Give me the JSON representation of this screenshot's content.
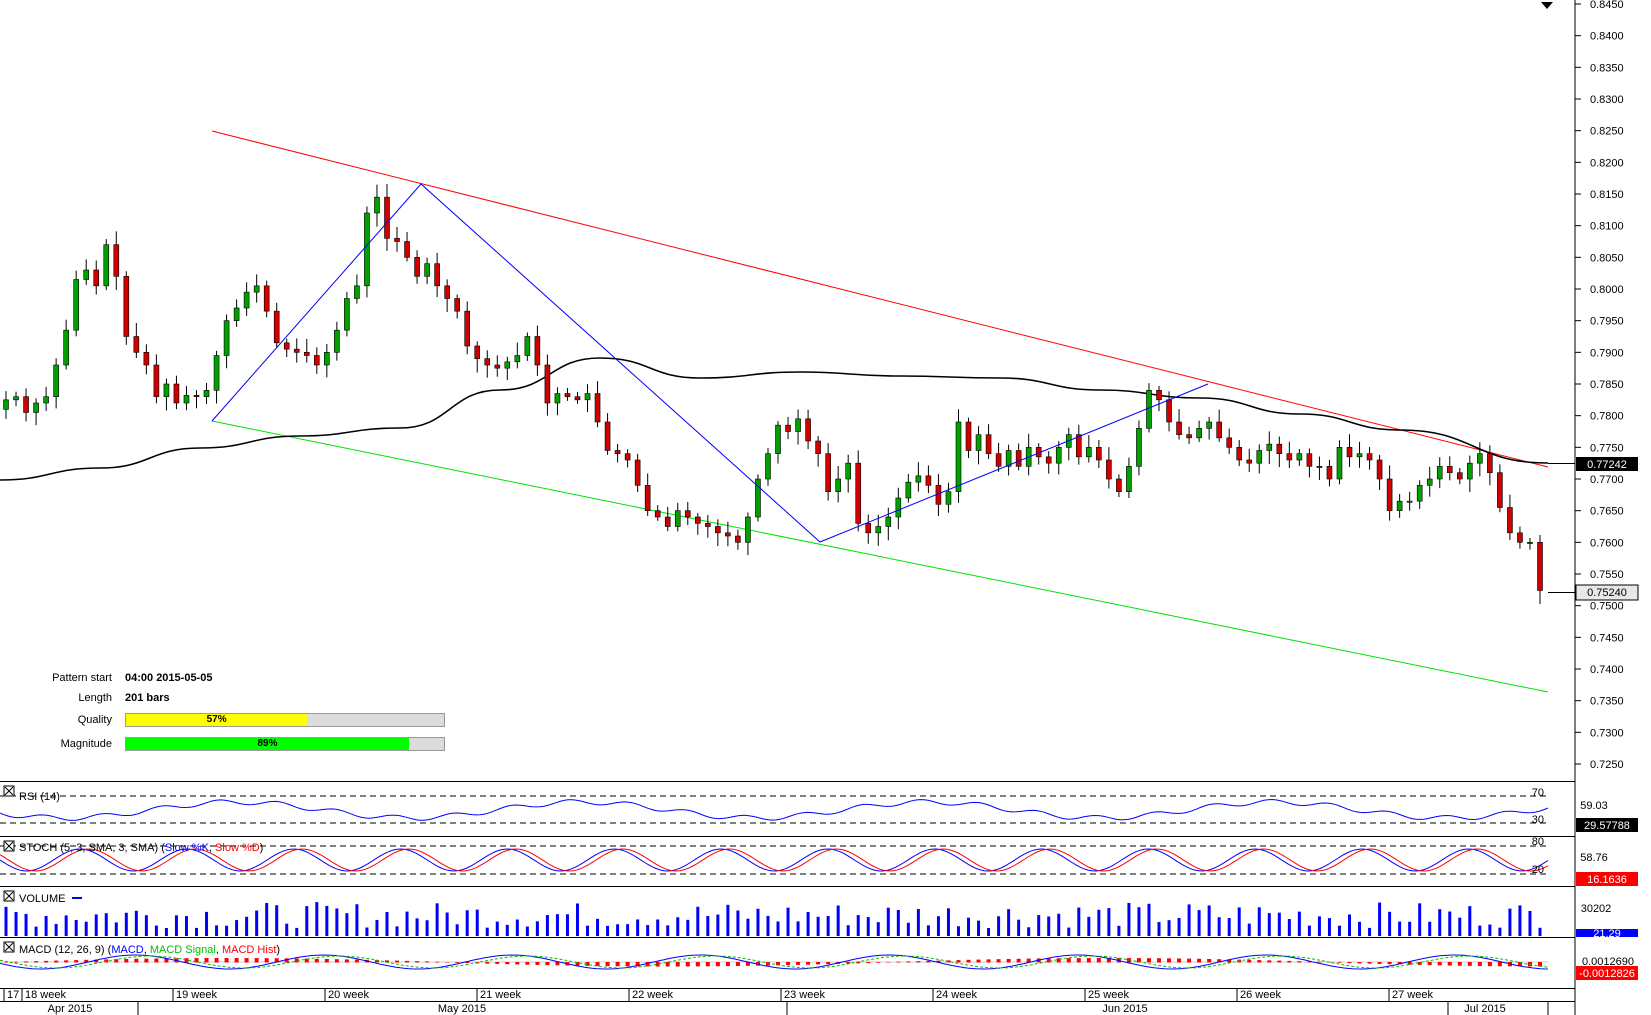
{
  "panels": {
    "rsi": {
      "title": "RSI (14)",
      "levels": [
        "70",
        "30"
      ],
      "mid": "59.03",
      "value": "29.57788"
    },
    "stoch": {
      "title_prefix": "STOCH (5, 3, SMA, 3, SMA) (",
      "k": "Slow %K",
      "sep": ", ",
      "d": "Slow %D",
      "suffix": ")",
      "levels": [
        "80",
        "20"
      ],
      "mid": "58.76",
      "value": "16.1636"
    },
    "volume": {
      "title": "VOLUME",
      "mid": "30202",
      "value": "21.29"
    },
    "macd": {
      "title_prefix": "MACD (12, 26, 9) (",
      "macd": "MACD",
      "signal": "MACD Signal",
      "hist": "MACD Hist",
      "sep": ", ",
      "suffix": ")",
      "top": "0.0012690",
      "value": "-0.0012826"
    }
  },
  "pattern": {
    "start_label": "Pattern start",
    "start_value": "04:00 2015-05-05",
    "length_label": "Length",
    "length_value": "201 bars",
    "quality_label": "Quality",
    "quality_value": "57%",
    "quality": 0.57,
    "magnitude_label": "Magnitude",
    "magnitude_value": "89%",
    "magnitude": 0.89
  },
  "colors": {
    "up": "#00a000",
    "down": "#d00000",
    "resistance": "#ff0000",
    "support": "#00e000",
    "zigzag": "#0000ff",
    "ma": "#000000",
    "quality": "#ffff00",
    "magnitude": "#00ff00"
  },
  "chart_data": {
    "type": "candlestick",
    "instrument_unknown": true,
    "ylim": [
      0.72,
      0.845
    ],
    "yticks": [
      "0.8450",
      "0.8400",
      "0.8350",
      "0.8300",
      "0.8250",
      "0.8200",
      "0.8150",
      "0.8100",
      "0.8050",
      "0.8000",
      "0.7950",
      "0.7900",
      "0.7850",
      "0.7800",
      "0.7750",
      "0.7700",
      "0.7650",
      "0.7600",
      "0.7550",
      "0.7500",
      "0.7450",
      "0.7400",
      "0.7350",
      "0.7300",
      "0.7250"
    ],
    "last_price": "0.75240",
    "ma_last": "0.77242",
    "week_labels": [
      "17",
      "18 week",
      "19 week",
      "20 week",
      "21 week",
      "22 week",
      "23 week",
      "24 week",
      "25 week",
      "26 week",
      "27 week"
    ],
    "month_labels": [
      "Apr 2015",
      "May 2015",
      "Jun 2015",
      "Jul 2015"
    ],
    "closes": [
      0.7825,
      0.783,
      0.7805,
      0.782,
      0.783,
      0.788,
      0.7935,
      0.8015,
      0.803,
      0.8005,
      0.807,
      0.802,
      0.7925,
      0.79,
      0.788,
      0.783,
      0.785,
      0.782,
      0.7832,
      0.783,
      0.784,
      0.7895,
      0.795,
      0.797,
      0.7995,
      0.8005,
      0.7965,
      0.7915,
      0.7905,
      0.79,
      0.7895,
      0.788,
      0.79,
      0.7935,
      0.7985,
      0.8005,
      0.812,
      0.8145,
      0.808,
      0.8075,
      0.805,
      0.802,
      0.804,
      0.8005,
      0.7985,
      0.7965,
      0.791,
      0.789,
      0.788,
      0.7875,
      0.7885,
      0.7895,
      0.7925,
      0.788,
      0.782,
      0.7835,
      0.783,
      0.7825,
      0.7835,
      0.779,
      0.7745,
      0.774,
      0.773,
      0.769,
      0.765,
      0.764,
      0.7625,
      0.765,
      0.764,
      0.763,
      0.7625,
      0.7615,
      0.761,
      0.76,
      0.764,
      0.77,
      0.774,
      0.7785,
      0.7775,
      0.7795,
      0.776,
      0.774,
      0.768,
      0.77,
      0.7725,
      0.763,
      0.7615,
      0.7625,
      0.764,
      0.767,
      0.7695,
      0.7705,
      0.769,
      0.766,
      0.768,
      0.779,
      0.7745,
      0.777,
      0.774,
      0.772,
      0.7745,
      0.772,
      0.775,
      0.7735,
      0.7725,
      0.775,
      0.777,
      0.7735,
      0.775,
      0.773,
      0.77,
      0.768,
      0.772,
      0.778,
      0.784,
      0.7825,
      0.779,
      0.777,
      0.7765,
      0.778,
      0.779,
      0.7765,
      0.775,
      0.773,
      0.7725,
      0.7745,
      0.7755,
      0.774,
      0.773,
      0.774,
      0.772,
      0.772,
      0.77,
      0.775,
      0.7735,
      0.774,
      0.773,
      0.77,
      0.765,
      0.7665,
      0.7665,
      0.769,
      0.77,
      0.772,
      0.771,
      0.77,
      0.7725,
      0.774,
      0.771,
      0.7655,
      0.7615,
      0.76,
      0.76,
      0.7524
    ]
  }
}
